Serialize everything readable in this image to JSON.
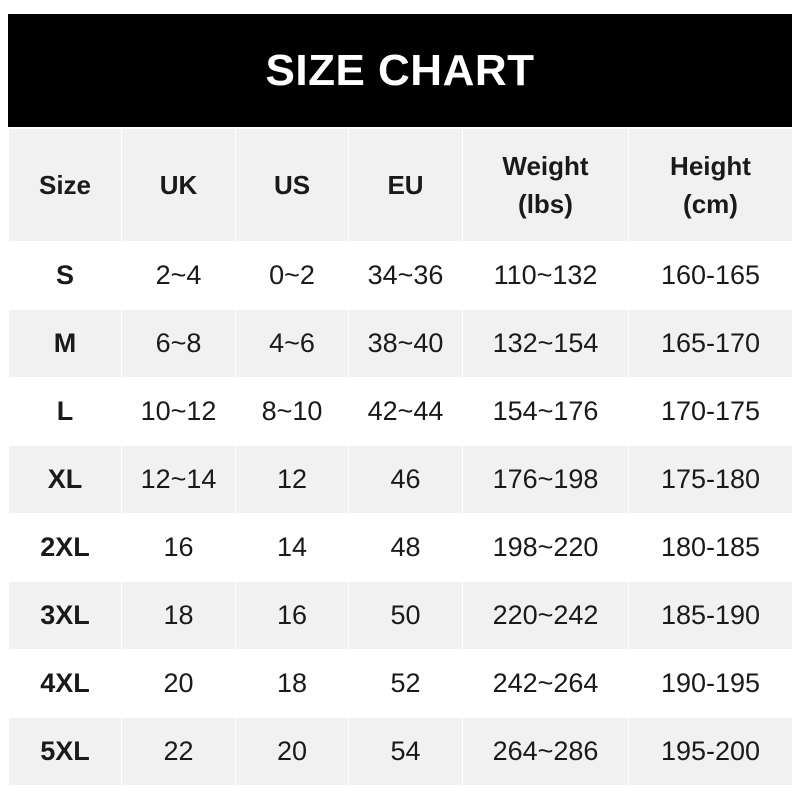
{
  "title": "SIZE CHART",
  "chart_data": {
    "type": "table",
    "title": "SIZE CHART",
    "columns": [
      "Size",
      "UK",
      "US",
      "EU",
      "Weight (lbs)",
      "Height (cm)"
    ],
    "header_lines": [
      [
        "Size"
      ],
      [
        "UK"
      ],
      [
        "US"
      ],
      [
        "EU"
      ],
      [
        "Weight",
        "(lbs)"
      ],
      [
        "Height",
        "(cm)"
      ]
    ],
    "rows": [
      [
        "S",
        "2~4",
        "0~2",
        "34~36",
        "110~132",
        "160-165"
      ],
      [
        "M",
        "6~8",
        "4~6",
        "38~40",
        "132~154",
        "165-170"
      ],
      [
        "L",
        "10~12",
        "8~10",
        "42~44",
        "154~176",
        "170-175"
      ],
      [
        "XL",
        "12~14",
        "12",
        "46",
        "176~198",
        "175-180"
      ],
      [
        "2XL",
        "16",
        "14",
        "48",
        "198~220",
        "180-185"
      ],
      [
        "3XL",
        "18",
        "16",
        "50",
        "220~242",
        "185-190"
      ],
      [
        "4XL",
        "20",
        "18",
        "52",
        "242~264",
        "190-195"
      ],
      [
        "5XL",
        "22",
        "20",
        "54",
        "264~286",
        "195-200"
      ]
    ]
  },
  "colors": {
    "title_bg": "#000000",
    "title_text": "#ffffff",
    "header_bg": "#f1f1f1",
    "alt_row_bg": "#f1f1f1",
    "row_bg": "#ffffff"
  }
}
